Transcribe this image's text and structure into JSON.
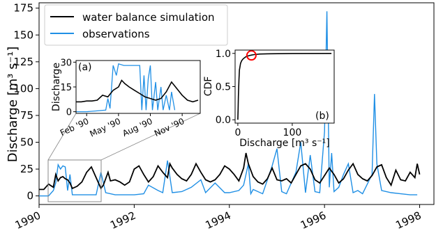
{
  "chart_data": [
    {
      "panel": "main",
      "type": "line",
      "ylabel": "Discharge [m³ s⁻¹]",
      "xlabel": "",
      "xlim": [
        1990,
        1998.3
      ],
      "ylim": [
        -8,
        180
      ],
      "yticks": [
        0,
        25,
        50,
        75,
        100,
        125,
        150,
        175
      ],
      "xticks": [
        1990,
        1992,
        1994,
        1996,
        1998
      ],
      "xtick_labels": [
        "1990",
        "1992",
        "1994",
        "1996",
        "1998"
      ],
      "legend": {
        "position": "top-left",
        "entries": [
          "water balance simulation",
          "observations"
        ]
      },
      "series": [
        {
          "name": "water balance simulation",
          "color": "#000000",
          "x": [
            1990.0,
            1990.1,
            1990.2,
            1990.3,
            1990.35,
            1990.4,
            1990.45,
            1990.5,
            1990.55,
            1990.6,
            1990.65,
            1990.7,
            1990.8,
            1990.9,
            1991.0,
            1991.1,
            1991.2,
            1991.3,
            1991.35,
            1991.4,
            1991.45,
            1991.5,
            1991.6,
            1991.7,
            1991.8,
            1991.9,
            1992.0,
            1992.1,
            1992.2,
            1992.3,
            1992.4,
            1992.5,
            1992.6,
            1992.7,
            1992.75,
            1992.8,
            1992.9,
            1993.0,
            1993.1,
            1993.2,
            1993.3,
            1993.4,
            1993.5,
            1993.6,
            1993.7,
            1993.8,
            1993.9,
            1994.0,
            1994.1,
            1994.2,
            1994.3,
            1994.35,
            1994.4,
            1994.5,
            1994.6,
            1994.7,
            1994.8,
            1994.9,
            1995.0,
            1995.1,
            1995.2,
            1995.3,
            1995.4,
            1995.5,
            1995.6,
            1995.7,
            1995.8,
            1995.9,
            1996.0,
            1996.1,
            1996.2,
            1996.3,
            1996.4,
            1996.5,
            1996.6,
            1996.7,
            1996.8,
            1996.9,
            1997.0,
            1997.1,
            1997.2,
            1997.3,
            1997.4,
            1997.5,
            1997.6,
            1997.7,
            1997.8,
            1997.9,
            1997.95,
            1998.0
          ],
          "y": [
            6,
            6,
            11,
            8,
            20,
            14,
            17,
            18,
            16,
            15,
            12,
            7,
            9,
            13,
            22,
            27,
            17,
            7,
            10,
            16,
            22,
            14,
            15,
            13,
            10,
            13,
            25,
            28,
            20,
            13,
            18,
            28,
            22,
            17,
            30,
            26,
            20,
            16,
            14,
            20,
            30,
            22,
            15,
            13,
            15,
            20,
            28,
            25,
            20,
            14,
            26,
            40,
            30,
            18,
            13,
            11,
            16,
            26,
            15,
            14,
            16,
            12,
            20,
            28,
            30,
            25,
            15,
            12,
            19,
            26,
            20,
            12,
            16,
            24,
            30,
            20,
            16,
            14,
            19,
            27,
            29,
            17,
            10,
            24,
            15,
            14,
            22,
            17,
            30,
            20
          ]
        },
        {
          "name": "observations",
          "color": "#1f8fe5",
          "x": [
            1990.0,
            1990.2,
            1990.3,
            1990.35,
            1990.4,
            1990.45,
            1990.5,
            1990.55,
            1990.6,
            1990.65,
            1990.7,
            1990.8,
            1991.0,
            1991.2,
            1991.3,
            1991.4,
            1991.6,
            1992.0,
            1992.2,
            1992.3,
            1992.5,
            1992.6,
            1992.7,
            1992.8,
            1993.0,
            1993.2,
            1993.4,
            1993.5,
            1993.7,
            1993.9,
            1994.0,
            1994.2,
            1994.3,
            1994.4,
            1994.45,
            1994.5,
            1994.7,
            1994.9,
            1995.0,
            1995.1,
            1995.2,
            1995.4,
            1995.5,
            1995.6,
            1995.7,
            1995.8,
            1995.9,
            1996.0,
            1996.05,
            1996.1,
            1996.15,
            1996.2,
            1996.3,
            1996.4,
            1996.5,
            1996.6,
            1996.7,
            1996.8,
            1997.0,
            1997.05,
            1997.1,
            1997.2,
            1997.4,
            1997.6,
            1997.8,
            1997.95
          ],
          "y": [
            0,
            0,
            5,
            12,
            29,
            25,
            28,
            27,
            5,
            20,
            1,
            1,
            1,
            1,
            22,
            3,
            1,
            1,
            2,
            10,
            5,
            3,
            33,
            3,
            4,
            8,
            15,
            3,
            12,
            3,
            3,
            5,
            10,
            30,
            2,
            6,
            2,
            28,
            44,
            4,
            2,
            22,
            50,
            3,
            38,
            4,
            3,
            60,
            172,
            8,
            40,
            4,
            8,
            20,
            30,
            3,
            5,
            2,
            20,
            95,
            30,
            5,
            3,
            2,
            1,
            1
          ]
        }
      ]
    },
    {
      "panel": "inset-a",
      "label": "(a)",
      "type": "line",
      "ylabel": "Discharge",
      "ylim": [
        -1,
        31
      ],
      "yticks": [
        0,
        15,
        30
      ],
      "xlim": [
        1,
        12.7
      ],
      "xticks": [
        2,
        5,
        8,
        11
      ],
      "xtick_labels": [
        "Feb '90",
        "May '90",
        "Aug '90",
        "Nov '90"
      ],
      "series": [
        {
          "name": "water balance simulation",
          "color": "#000000",
          "x": [
            1,
            1.5,
            2,
            2.5,
            3,
            3.5,
            4,
            4.5,
            5,
            5.3,
            5.6,
            6,
            6.5,
            7,
            7.5,
            8,
            8.5,
            9,
            9.5,
            10,
            10.5,
            11,
            11.5,
            12,
            12.5
          ],
          "y": [
            6,
            6,
            6.5,
            6.5,
            7,
            10,
            9,
            13,
            15,
            19,
            17,
            15,
            13,
            11,
            9,
            8,
            7,
            8,
            12,
            18,
            14,
            10,
            7,
            6,
            7
          ]
        },
        {
          "name": "observations",
          "color": "#1f8fe5",
          "x": [
            1,
            2,
            3,
            3.8,
            4,
            4.2,
            4.5,
            4.8,
            5,
            5.5,
            6,
            6.5,
            7,
            7.2,
            7.4,
            7.6,
            7.8,
            8,
            8.2,
            8.5,
            8.7,
            9,
            9.2,
            9.5,
            9.8,
            10,
            10.3
          ],
          "y": [
            0,
            0,
            0.5,
            1,
            8,
            2,
            28,
            22,
            29,
            28,
            28,
            28,
            28,
            1,
            22,
            1,
            20,
            28,
            1,
            18,
            1,
            15,
            1,
            10,
            1,
            12,
            1
          ]
        }
      ]
    },
    {
      "panel": "inset-b",
      "label": "(b)",
      "type": "line",
      "xlabel": "Discharge [m³ s⁻¹]",
      "ylabel": "CDF",
      "xlim": [
        -5,
        177
      ],
      "ylim": [
        -0.05,
        1.05
      ],
      "xticks": [
        0,
        100
      ],
      "xtick_labels": [
        "0",
        "100"
      ],
      "yticks": [
        0.0,
        0.5,
        1.0
      ],
      "ytick_labels": [
        "0.0",
        "0.5",
        "1.0"
      ],
      "series": [
        {
          "name": "",
          "color": "#000000",
          "x": [
            0,
            0.5,
            1,
            2,
            3,
            5,
            7,
            10,
            15,
            20,
            25,
            30,
            40,
            60,
            100,
            172
          ],
          "y": [
            0,
            0.15,
            0.35,
            0.6,
            0.75,
            0.85,
            0.89,
            0.92,
            0.95,
            0.965,
            0.975,
            0.982,
            0.99,
            0.995,
            0.999,
            1.0
          ]
        }
      ],
      "marker": {
        "x": 25,
        "y": 0.97,
        "color": "#ff0000"
      }
    }
  ]
}
